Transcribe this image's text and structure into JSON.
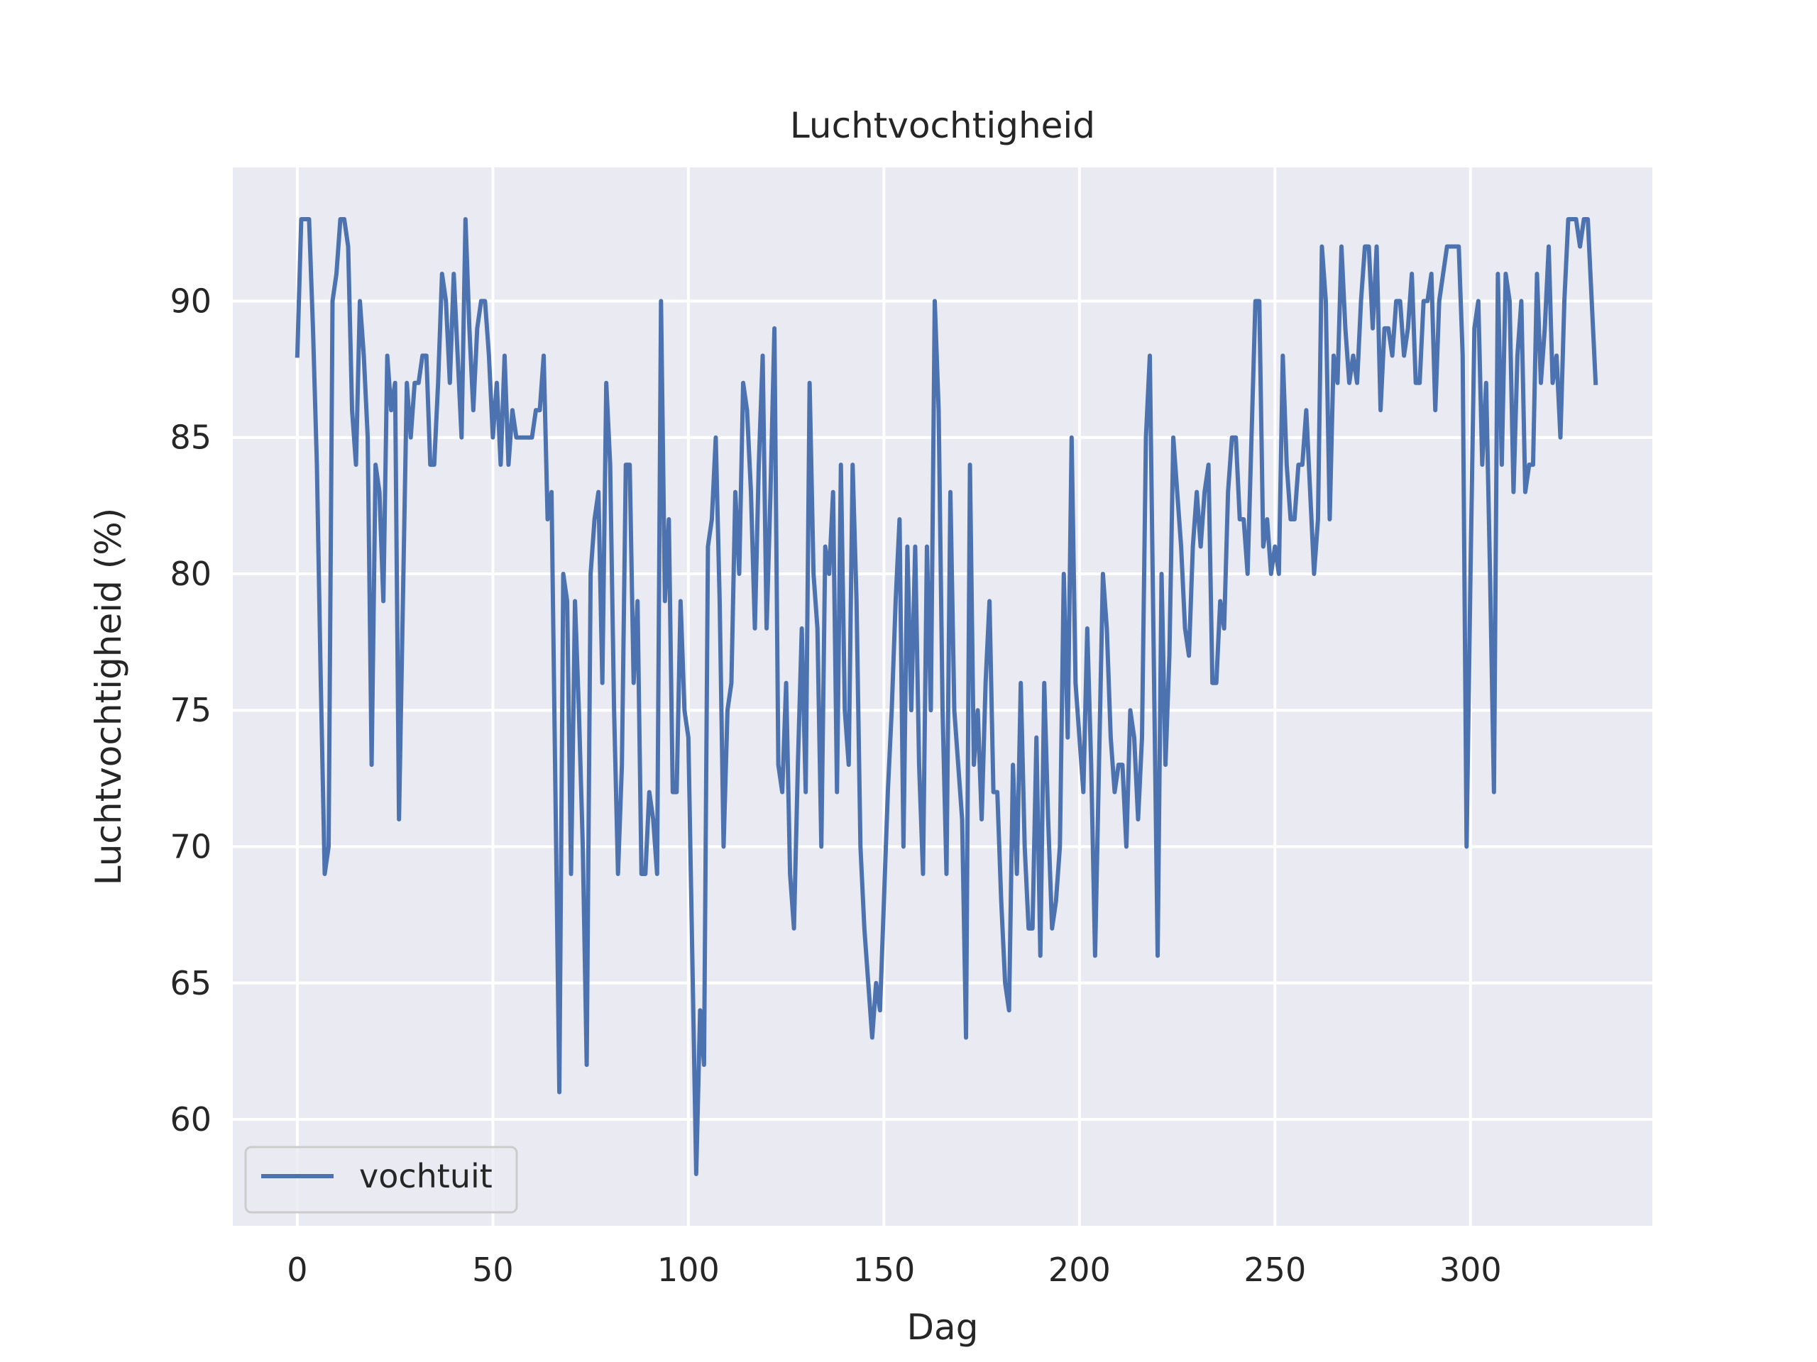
{
  "chart_data": {
    "type": "line",
    "title": "Luchtvochtigheid",
    "xlabel": "Dag",
    "ylabel": "Luchtvochtigheid (%)",
    "xlim": [
      -16.5,
      346.5
    ],
    "ylim": [
      56.1,
      94.9
    ],
    "xticks": [
      0,
      50,
      100,
      150,
      200,
      250,
      300
    ],
    "yticks": [
      60,
      65,
      70,
      75,
      80,
      85,
      90
    ],
    "grid": true,
    "legend_position": "lower-left",
    "series": [
      {
        "name": "vochtuit",
        "color": "#4c72b0",
        "values": [
          88,
          93,
          93,
          93,
          89,
          84,
          76,
          69,
          70,
          90,
          91,
          93,
          93,
          92,
          86,
          84,
          90,
          88,
          85,
          73,
          84,
          83,
          79,
          88,
          86,
          87,
          71,
          79,
          87,
          85,
          87,
          87,
          88,
          88,
          84,
          84,
          87,
          91,
          90,
          87,
          91,
          88,
          85,
          93,
          89,
          86,
          89,
          90,
          90,
          88,
          85,
          87,
          84,
          88,
          84,
          86,
          85,
          85,
          85,
          85,
          85,
          86,
          86,
          88,
          82,
          83,
          72,
          61,
          80,
          79,
          69,
          79,
          75,
          70,
          62,
          80,
          82,
          83,
          76,
          87,
          84,
          75,
          69,
          73,
          84,
          84,
          76,
          79,
          69,
          69,
          72,
          71,
          69,
          90,
          79,
          82,
          72,
          72,
          79,
          75,
          74,
          66,
          58,
          64,
          62,
          81,
          82,
          85,
          79,
          70,
          75,
          76,
          83,
          80,
          87,
          86,
          83,
          78,
          84,
          88,
          78,
          83,
          89,
          73,
          72,
          76,
          69,
          67,
          73,
          78,
          72,
          87,
          80,
          78,
          70,
          81,
          80,
          83,
          72,
          84,
          75,
          73,
          84,
          79,
          70,
          67,
          65,
          63,
          65,
          64,
          68,
          72,
          75,
          79,
          82,
          70,
          81,
          75,
          81,
          73,
          69,
          81,
          75,
          90,
          86,
          75,
          69,
          83,
          75,
          73,
          71,
          63,
          84,
          73,
          75,
          71,
          76,
          79,
          72,
          72,
          68,
          65,
          64,
          73,
          69,
          76,
          70,
          67,
          67,
          74,
          66,
          76,
          71,
          67,
          68,
          70,
          80,
          74,
          85,
          76,
          74,
          72,
          78,
          73,
          66,
          73,
          80,
          78,
          74,
          72,
          73,
          73,
          70,
          75,
          74,
          71,
          74,
          85,
          88,
          77,
          66,
          80,
          73,
          77,
          85,
          83,
          81,
          78,
          77,
          81,
          83,
          81,
          83,
          84,
          76,
          76,
          79,
          78,
          83,
          85,
          85,
          82,
          82,
          80,
          85,
          90,
          90,
          81,
          82,
          80,
          81,
          80,
          88,
          84,
          82,
          82,
          84,
          84,
          86,
          83,
          80,
          82,
          92,
          90,
          82,
          88,
          87,
          92,
          89,
          87,
          88,
          87,
          90,
          92,
          92,
          89,
          92,
          86,
          89,
          89,
          88,
          90,
          90,
          88,
          89,
          91,
          87,
          87,
          90,
          90,
          91,
          86,
          90,
          91,
          92,
          92,
          92,
          92,
          88,
          70,
          80,
          89,
          90,
          84,
          87,
          80,
          72,
          91,
          84,
          91,
          90,
          83,
          88,
          90,
          83,
          84,
          84,
          91,
          87,
          89,
          92,
          87,
          88,
          85,
          90,
          93,
          93,
          93,
          92,
          93,
          93,
          90,
          87
        ]
      }
    ]
  }
}
